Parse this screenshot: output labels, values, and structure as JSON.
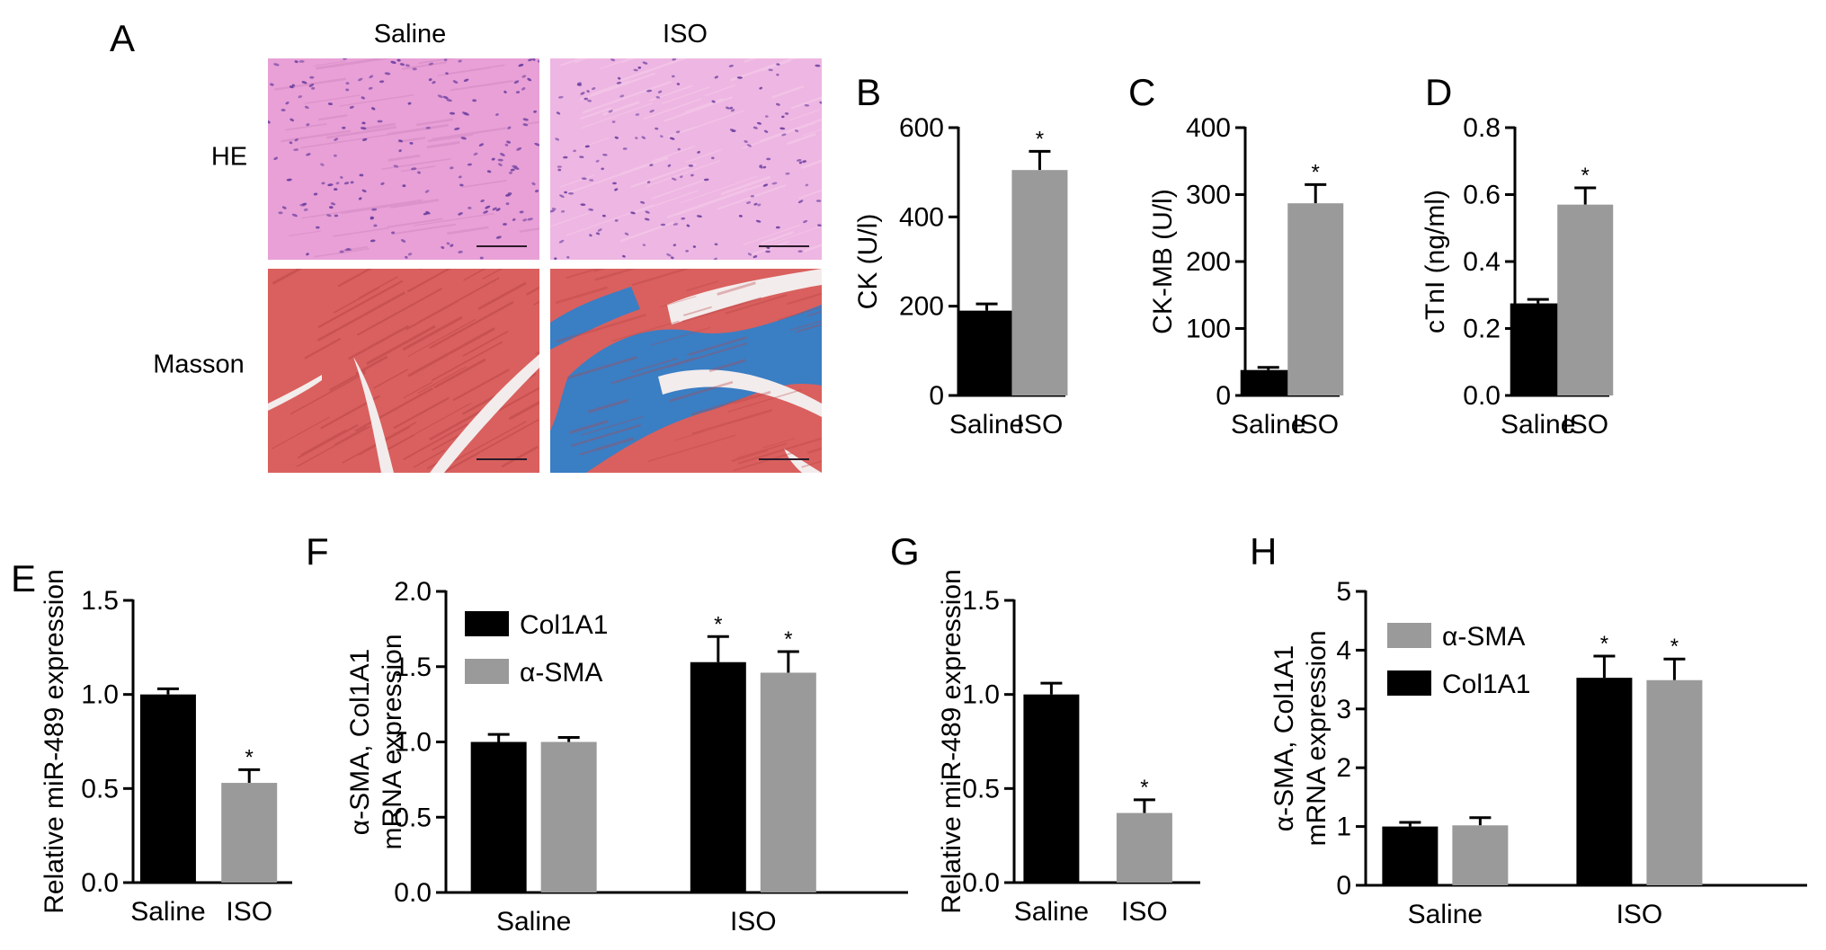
{
  "panel_letters": [
    "A",
    "B",
    "C",
    "D",
    "E",
    "F",
    "G",
    "H"
  ],
  "histology": {
    "columns": [
      "Saline",
      "ISO"
    ],
    "rows": [
      "HE",
      "Masson"
    ],
    "colors": {
      "he_background": "#e8a0d6",
      "he_nuclei": "#6a3ea0",
      "masson_muscle": "#d9605e",
      "masson_fibrosis": "#3a7ec4",
      "masson_gap": "#f3ecec"
    }
  },
  "colors": {
    "black_bar": "#000000",
    "gray_bar": "#9a9a9a"
  },
  "chart_data": [
    {
      "panel": "B",
      "type": "bar",
      "categories": [
        "Saline",
        "ISO"
      ],
      "values": [
        190,
        505
      ],
      "errors": [
        15,
        42
      ],
      "bar_colors": [
        "#000000",
        "#9a9a9a"
      ],
      "significance": [
        "",
        "*"
      ],
      "ylabel": "CK (U/l)",
      "ylim": [
        0,
        600
      ],
      "yticks": [
        "0",
        "200",
        "400",
        "600"
      ]
    },
    {
      "panel": "C",
      "type": "bar",
      "categories": [
        "Saline",
        "ISO"
      ],
      "values": [
        38,
        287
      ],
      "errors": [
        4,
        28
      ],
      "bar_colors": [
        "#000000",
        "#9a9a9a"
      ],
      "significance": [
        "",
        "*"
      ],
      "ylabel": "CK-MB (U/l)",
      "ylim": [
        0,
        400
      ],
      "yticks": [
        "0",
        "100",
        "200",
        "300",
        "400"
      ]
    },
    {
      "panel": "D",
      "type": "bar",
      "categories": [
        "Saline",
        "ISO"
      ],
      "values": [
        0.275,
        0.57
      ],
      "errors": [
        0.012,
        0.05
      ],
      "bar_colors": [
        "#000000",
        "#9a9a9a"
      ],
      "significance": [
        "",
        "*"
      ],
      "ylabel": "cTnI (ng/ml)",
      "ylim": [
        0,
        0.8
      ],
      "yticks": [
        "0.0",
        "0.2",
        "0.4",
        "0.6",
        "0.8"
      ]
    },
    {
      "panel": "E",
      "type": "bar",
      "categories": [
        "Saline",
        "ISO"
      ],
      "values": [
        1.0,
        0.53
      ],
      "errors": [
        0.03,
        0.07
      ],
      "bar_colors": [
        "#000000",
        "#9a9a9a"
      ],
      "significance": [
        "",
        "*"
      ],
      "ylabel": "Relative miR-489 expression",
      "ylim": [
        0,
        1.5
      ],
      "yticks": [
        "0.0",
        "0.5",
        "1.0",
        "1.5"
      ]
    },
    {
      "panel": "F",
      "type": "bar",
      "categories": [
        "Saline",
        "ISO"
      ],
      "series": [
        {
          "name": "Col1A1",
          "color": "#000000",
          "values": [
            1.0,
            1.53
          ],
          "errors": [
            0.05,
            0.17
          ],
          "significance": [
            "",
            "*"
          ]
        },
        {
          "name": "α-SMA",
          "color": "#9a9a9a",
          "values": [
            1.0,
            1.46
          ],
          "errors": [
            0.03,
            0.14
          ],
          "significance": [
            "",
            "*"
          ]
        }
      ],
      "ylabel": [
        "α-SMA, Col1A1",
        "mRNA expression"
      ],
      "ylim": [
        0,
        2.0
      ],
      "yticks": [
        "0.0",
        "0.5",
        "1.0",
        "1.5",
        "2.0"
      ],
      "legend_order": [
        0,
        1
      ]
    },
    {
      "panel": "G",
      "type": "bar",
      "categories": [
        "Saline",
        "ISO"
      ],
      "values": [
        1.0,
        0.37
      ],
      "errors": [
        0.06,
        0.07
      ],
      "bar_colors": [
        "#000000",
        "#9a9a9a"
      ],
      "significance": [
        "",
        "*"
      ],
      "ylabel": "Relative miR-489 expression",
      "ylim": [
        0,
        1.5
      ],
      "yticks": [
        "0.0",
        "0.5",
        "1.0",
        "1.5"
      ]
    },
    {
      "panel": "H",
      "type": "bar",
      "categories": [
        "Saline",
        "ISO"
      ],
      "series": [
        {
          "name": "Col1A1",
          "color": "#000000",
          "values": [
            1.0,
            3.53
          ],
          "errors": [
            0.07,
            0.37
          ],
          "significance": [
            "",
            "*"
          ]
        },
        {
          "name": "α-SMA",
          "color": "#9a9a9a",
          "values": [
            1.02,
            3.49
          ],
          "errors": [
            0.13,
            0.36
          ],
          "significance": [
            "",
            "*"
          ]
        }
      ],
      "ylabel": [
        "α-SMA, Col1A1",
        "mRNA expression"
      ],
      "ylim": [
        0,
        5
      ],
      "yticks": [
        "0",
        "1",
        "2",
        "3",
        "4",
        "5"
      ],
      "legend_order": [
        1,
        0
      ]
    }
  ]
}
